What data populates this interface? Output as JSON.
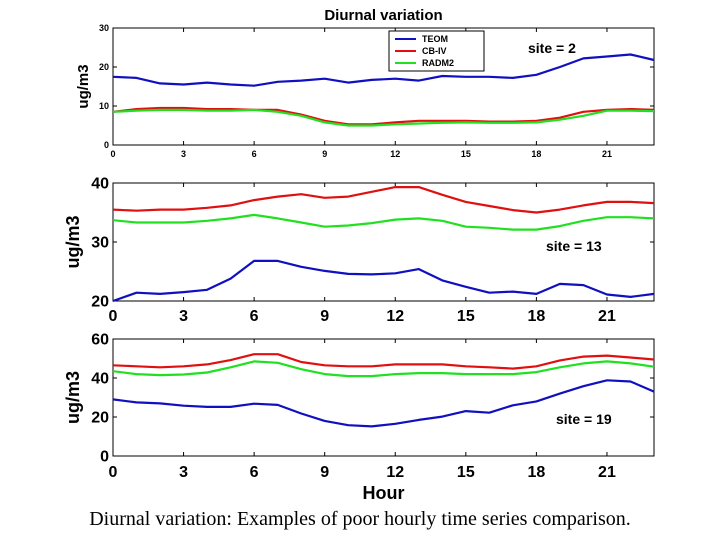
{
  "caption": "Diurnal variation: Examples of poor hourly time series comparison.",
  "colors": {
    "TEOM": "#1010c0",
    "CB-IV": "#e01010",
    "RADM2": "#20e020"
  },
  "chart_data": [
    {
      "type": "line",
      "title": "Diurnal variation",
      "ylabel": "ug/m3",
      "xlabel": "",
      "annotation": "site = 2",
      "xlim": [
        0,
        23
      ],
      "ylim": [
        0,
        30
      ],
      "xticks": [
        0,
        3,
        6,
        9,
        12,
        15,
        18,
        21
      ],
      "yticks": [
        0,
        10,
        20,
        30
      ],
      "legend": {
        "position": "top-center",
        "entries": [
          "TEOM",
          "CB-IV",
          "RADM2"
        ]
      },
      "x": [
        0,
        1,
        2,
        3,
        4,
        5,
        6,
        7,
        8,
        9,
        10,
        11,
        12,
        13,
        14,
        15,
        16,
        17,
        18,
        19,
        20,
        21,
        22,
        23
      ],
      "series": [
        {
          "name": "TEOM",
          "values": [
            17.5,
            17.2,
            15.8,
            15.5,
            16.0,
            15.5,
            15.2,
            16.2,
            16.5,
            17.0,
            16.0,
            16.7,
            17.0,
            16.5,
            17.7,
            17.5,
            17.5,
            17.2,
            18.0,
            20.0,
            22.2,
            22.7,
            23.2,
            21.8
          ]
        },
        {
          "name": "CB-IV",
          "values": [
            8.5,
            9.2,
            9.5,
            9.5,
            9.2,
            9.2,
            9.0,
            9.0,
            7.8,
            6.2,
            5.3,
            5.3,
            5.8,
            6.2,
            6.2,
            6.2,
            6.0,
            6.0,
            6.2,
            7.0,
            8.5,
            9.0,
            9.2,
            9.0
          ]
        },
        {
          "name": "RADM2",
          "values": [
            8.5,
            8.8,
            9.0,
            9.0,
            8.8,
            8.8,
            9.0,
            8.5,
            7.5,
            5.8,
            5.0,
            5.0,
            5.3,
            5.5,
            5.7,
            5.8,
            5.7,
            5.7,
            5.8,
            6.5,
            7.5,
            8.8,
            8.8,
            8.7
          ]
        }
      ]
    },
    {
      "type": "line",
      "title": "",
      "ylabel": "ug/m3",
      "xlabel": "",
      "annotation": "site = 13",
      "xlim": [
        0,
        23
      ],
      "ylim": [
        20,
        40
      ],
      "xticks": [
        0,
        3,
        6,
        9,
        12,
        15,
        18,
        21
      ],
      "yticks": [
        20,
        30,
        40
      ],
      "x": [
        0,
        1,
        2,
        3,
        4,
        5,
        6,
        7,
        8,
        9,
        10,
        11,
        12,
        13,
        14,
        15,
        16,
        17,
        18,
        19,
        20,
        21,
        22,
        23
      ],
      "series": [
        {
          "name": "TEOM",
          "values": [
            20.0,
            21.4,
            21.2,
            21.5,
            21.9,
            23.8,
            26.8,
            26.8,
            25.8,
            25.1,
            24.6,
            24.5,
            24.7,
            25.4,
            23.5,
            22.4,
            21.4,
            21.6,
            21.2,
            22.9,
            22.7,
            21.1,
            20.7,
            21.2
          ]
        },
        {
          "name": "CB-IV",
          "values": [
            35.5,
            35.3,
            35.5,
            35.5,
            35.8,
            36.2,
            37.1,
            37.7,
            38.1,
            37.5,
            37.7,
            38.5,
            39.3,
            39.3,
            38.0,
            36.8,
            36.1,
            35.4,
            35.0,
            35.5,
            36.2,
            36.8,
            36.8,
            36.6
          ]
        },
        {
          "name": "RADM2",
          "values": [
            33.7,
            33.3,
            33.3,
            33.3,
            33.6,
            34.0,
            34.6,
            34.0,
            33.3,
            32.6,
            32.8,
            33.2,
            33.8,
            34.0,
            33.6,
            32.6,
            32.4,
            32.1,
            32.1,
            32.7,
            33.6,
            34.2,
            34.2,
            34.0
          ]
        }
      ]
    },
    {
      "type": "line",
      "title": "",
      "ylabel": "ug/m3",
      "xlabel": "Hour",
      "annotation": "site = 19",
      "xlim": [
        0,
        23
      ],
      "ylim": [
        0,
        60
      ],
      "xticks": [
        0,
        3,
        6,
        9,
        12,
        15,
        18,
        21
      ],
      "yticks": [
        0,
        20,
        40,
        60
      ],
      "x": [
        0,
        1,
        2,
        3,
        4,
        5,
        6,
        7,
        8,
        9,
        10,
        11,
        12,
        13,
        14,
        15,
        16,
        17,
        18,
        19,
        20,
        21,
        22,
        23
      ],
      "series": [
        {
          "name": "TEOM",
          "values": [
            29,
            27.5,
            27,
            25.8,
            25.2,
            25.2,
            26.8,
            26.2,
            21.8,
            18,
            15.8,
            15.2,
            16.5,
            18.5,
            20.2,
            23,
            22.2,
            26,
            28,
            32,
            35.8,
            38.8,
            38.2,
            33
          ]
        },
        {
          "name": "CB-IV",
          "values": [
            46.5,
            46,
            45.5,
            46,
            47,
            49.2,
            52.2,
            52.2,
            48.2,
            46.5,
            46,
            46,
            47,
            47,
            47,
            46,
            45.5,
            44.8,
            46,
            49,
            51,
            51.5,
            50.5,
            49.5
          ]
        },
        {
          "name": "RADM2",
          "values": [
            43.5,
            42,
            41.5,
            41.8,
            42.8,
            45.5,
            48.5,
            47.8,
            44.5,
            42,
            41,
            41,
            42,
            42.5,
            42.5,
            42,
            42,
            42,
            43,
            45.5,
            47.5,
            48.5,
            47.5,
            45.8
          ]
        }
      ]
    }
  ]
}
